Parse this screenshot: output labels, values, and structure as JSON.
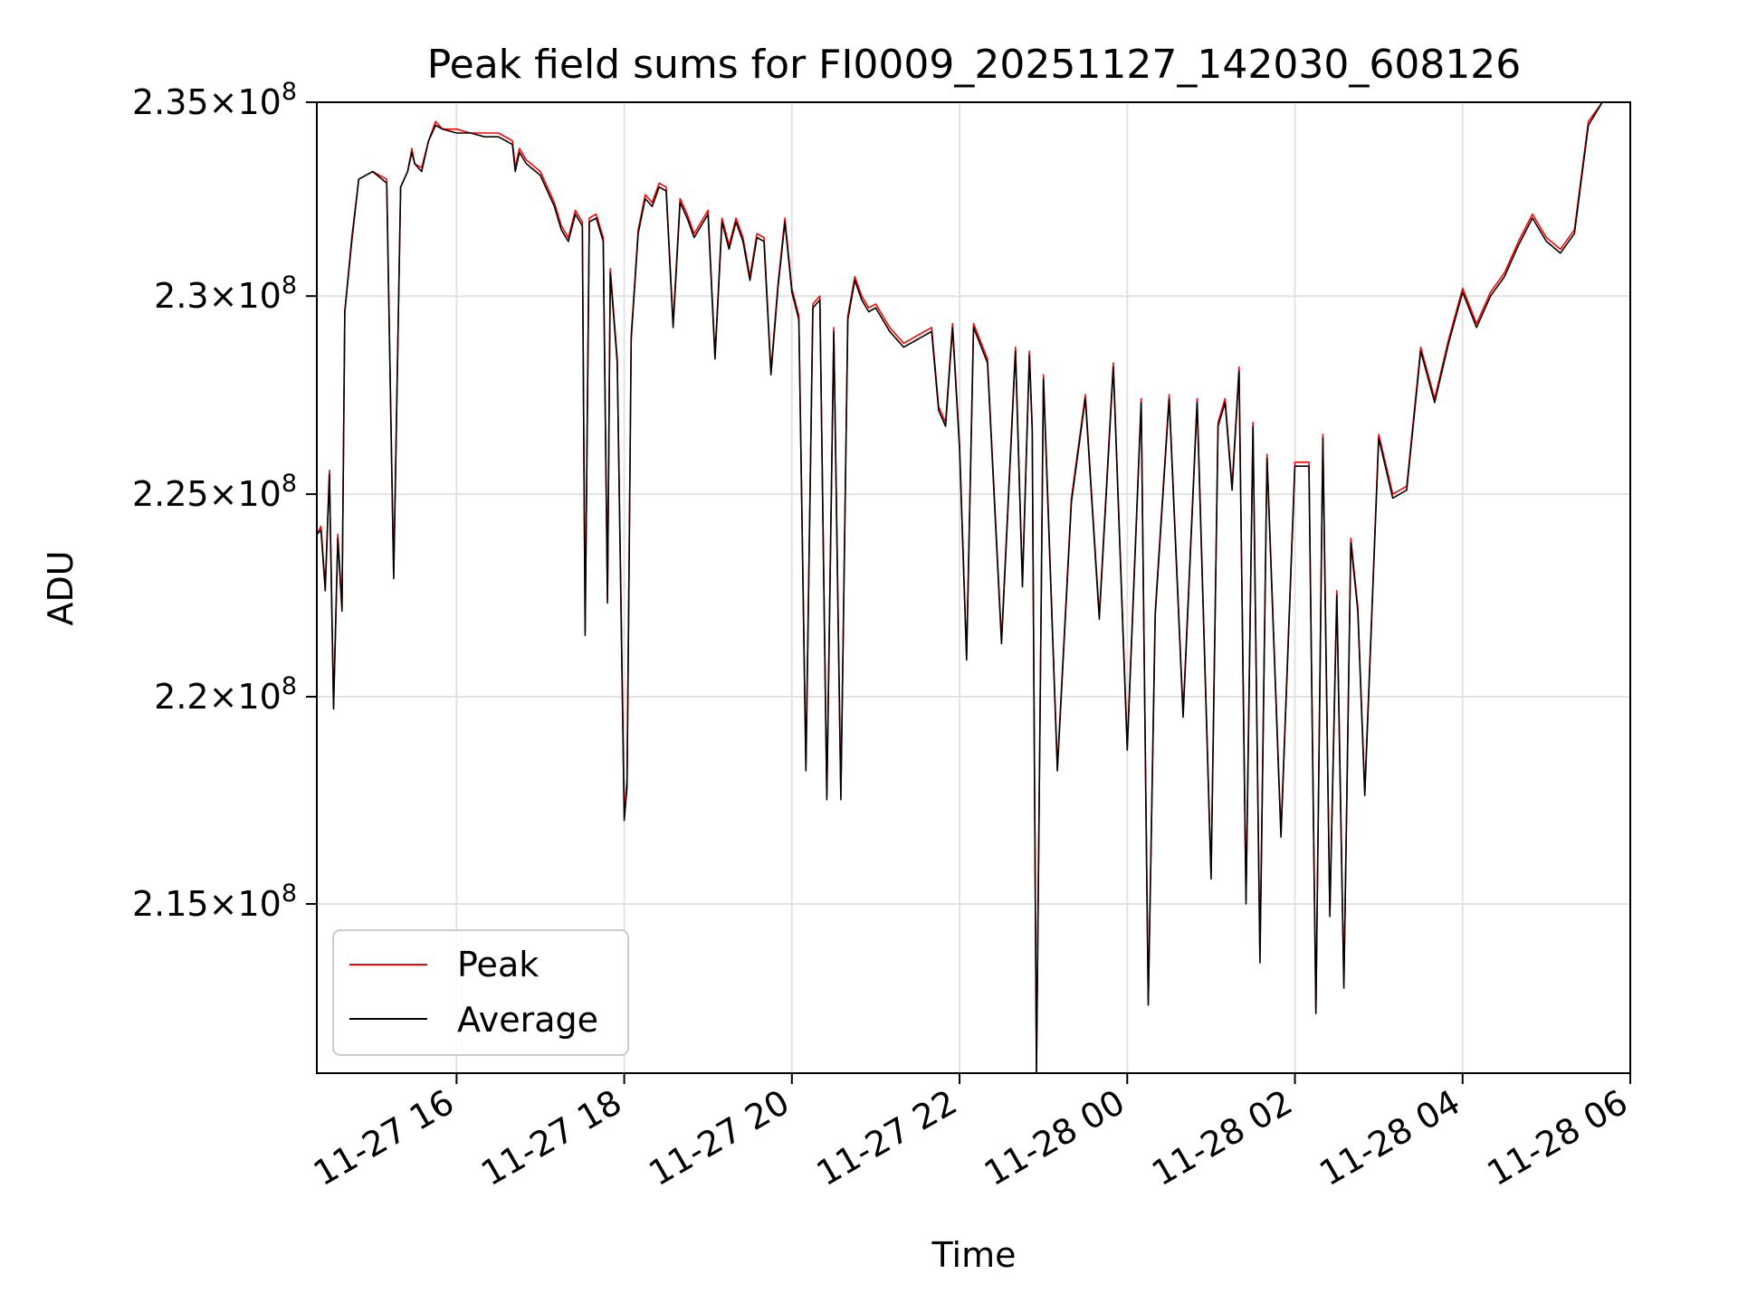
{
  "chart_data": {
    "type": "line",
    "title": "Peak field sums for FI0009_20251127_142030_608126",
    "xlabel": "Time",
    "ylabel": "ADU",
    "yscale": "log",
    "ylim": [
      211000000,
      235000000
    ],
    "xlim": [
      "2025-11-27 14:20",
      "2025-11-28 06:00"
    ],
    "grid": true,
    "legend_loc": "lower left",
    "x_ticks": [
      {
        "x": "2025-11-27 16:00",
        "label": "11-27 16"
      },
      {
        "x": "2025-11-27 18:00",
        "label": "11-27 18"
      },
      {
        "x": "2025-11-27 20:00",
        "label": "11-27 20"
      },
      {
        "x": "2025-11-27 22:00",
        "label": "11-27 22"
      },
      {
        "x": "2025-11-28 00:00",
        "label": "11-28 00"
      },
      {
        "x": "2025-11-28 02:00",
        "label": "11-28 02"
      },
      {
        "x": "2025-11-28 04:00",
        "label": "11-28 04"
      },
      {
        "x": "2025-11-28 06:00",
        "label": "11-28 06"
      }
    ],
    "y_ticks": [
      {
        "value": 215000000,
        "mantissa": "2.15",
        "exp": "8"
      },
      {
        "value": 220000000,
        "mantissa": "2.2",
        "exp": "8"
      },
      {
        "value": 225000000,
        "mantissa": "2.25",
        "exp": "8"
      },
      {
        "value": 230000000,
        "mantissa": "2.3",
        "exp": "8"
      },
      {
        "value": 235000000,
        "mantissa": "2.35",
        "exp": "8"
      }
    ],
    "times_sign": "×",
    "tick_base": "10",
    "x": [
      "2025-11-27 14:20",
      "2025-11-27 14:23",
      "2025-11-27 14:26",
      "2025-11-27 14:29",
      "2025-11-27 14:32",
      "2025-11-27 14:35",
      "2025-11-27 14:38",
      "2025-11-27 14:40",
      "2025-11-27 14:45",
      "2025-11-27 14:50",
      "2025-11-27 15:00",
      "2025-11-27 15:10",
      "2025-11-27 15:15",
      "2025-11-27 15:20",
      "2025-11-27 15:25",
      "2025-11-27 15:28",
      "2025-11-27 15:30",
      "2025-11-27 15:35",
      "2025-11-27 15:40",
      "2025-11-27 15:45",
      "2025-11-27 15:50",
      "2025-11-27 16:00",
      "2025-11-27 16:10",
      "2025-11-27 16:20",
      "2025-11-27 16:30",
      "2025-11-27 16:40",
      "2025-11-27 16:42",
      "2025-11-27 16:45",
      "2025-11-27 16:50",
      "2025-11-27 17:00",
      "2025-11-27 17:10",
      "2025-11-27 17:15",
      "2025-11-27 17:20",
      "2025-11-27 17:25",
      "2025-11-27 17:30",
      "2025-11-27 17:32",
      "2025-11-27 17:35",
      "2025-11-27 17:40",
      "2025-11-27 17:45",
      "2025-11-27 17:48",
      "2025-11-27 17:50",
      "2025-11-27 17:55",
      "2025-11-27 18:00",
      "2025-11-27 18:02",
      "2025-11-27 18:05",
      "2025-11-27 18:10",
      "2025-11-27 18:15",
      "2025-11-27 18:20",
      "2025-11-27 18:25",
      "2025-11-27 18:30",
      "2025-11-27 18:35",
      "2025-11-27 18:40",
      "2025-11-27 18:45",
      "2025-11-27 18:50",
      "2025-11-27 19:00",
      "2025-11-27 19:05",
      "2025-11-27 19:10",
      "2025-11-27 19:15",
      "2025-11-27 19:20",
      "2025-11-27 19:25",
      "2025-11-27 19:30",
      "2025-11-27 19:35",
      "2025-11-27 19:40",
      "2025-11-27 19:45",
      "2025-11-27 19:50",
      "2025-11-27 19:55",
      "2025-11-27 20:00",
      "2025-11-27 20:05",
      "2025-11-27 20:10",
      "2025-11-27 20:15",
      "2025-11-27 20:20",
      "2025-11-27 20:25",
      "2025-11-27 20:30",
      "2025-11-27 20:35",
      "2025-11-27 20:40",
      "2025-11-27 20:45",
      "2025-11-27 20:50",
      "2025-11-27 20:55",
      "2025-11-27 21:00",
      "2025-11-27 21:10",
      "2025-11-27 21:20",
      "2025-11-27 21:30",
      "2025-11-27 21:40",
      "2025-11-27 21:45",
      "2025-11-27 21:50",
      "2025-11-27 21:55",
      "2025-11-27 22:00",
      "2025-11-27 22:05",
      "2025-11-27 22:10",
      "2025-11-27 22:20",
      "2025-11-27 22:30",
      "2025-11-27 22:40",
      "2025-11-27 22:45",
      "2025-11-27 22:50",
      "2025-11-27 22:52",
      "2025-11-27 22:55",
      "2025-11-27 23:00",
      "2025-11-27 23:10",
      "2025-11-27 23:20",
      "2025-11-27 23:30",
      "2025-11-27 23:40",
      "2025-11-27 23:50",
      "2025-11-28 00:00",
      "2025-11-28 00:10",
      "2025-11-28 00:15",
      "2025-11-28 00:20",
      "2025-11-28 00:30",
      "2025-11-28 00:40",
      "2025-11-28 00:50",
      "2025-11-28 01:00",
      "2025-11-28 01:05",
      "2025-11-28 01:10",
      "2025-11-28 01:15",
      "2025-11-28 01:20",
      "2025-11-28 01:25",
      "2025-11-28 01:30",
      "2025-11-28 01:35",
      "2025-11-28 01:40",
      "2025-11-28 01:50",
      "2025-11-28 02:00",
      "2025-11-28 02:10",
      "2025-11-28 02:15",
      "2025-11-28 02:20",
      "2025-11-28 02:25",
      "2025-11-28 02:30",
      "2025-11-28 02:35",
      "2025-11-28 02:40",
      "2025-11-28 02:45",
      "2025-11-28 02:50",
      "2025-11-28 03:00",
      "2025-11-28 03:10",
      "2025-11-28 03:20",
      "2025-11-28 03:30",
      "2025-11-28 03:40",
      "2025-11-28 03:50",
      "2025-11-28 04:00",
      "2025-11-28 04:10",
      "2025-11-28 04:20",
      "2025-11-28 04:30",
      "2025-11-28 04:40",
      "2025-11-28 04:50",
      "2025-11-28 05:00",
      "2025-11-28 05:10",
      "2025-11-28 05:20",
      "2025-11-28 05:30",
      "2025-11-28 05:40",
      "2025-11-28 05:50",
      "2025-11-28 06:00"
    ],
    "series": [
      {
        "name": "Peak",
        "color": "#ff0000",
        "values": [
          224000000,
          224200000,
          222700000,
          225600000,
          219800000,
          224000000,
          222200000,
          229600000,
          231500000,
          233000000,
          233200000,
          233000000,
          223000000,
          232800000,
          233200000,
          233800000,
          233400000,
          233300000,
          234000000,
          234500000,
          234300000,
          234300000,
          234200000,
          234200000,
          234200000,
          234000000,
          233300000,
          233800000,
          233500000,
          233200000,
          232400000,
          231800000,
          231500000,
          232200000,
          231900000,
          221600000,
          232000000,
          232100000,
          231500000,
          222400000,
          230700000,
          228400000,
          217200000,
          218000000,
          229000000,
          231700000,
          232600000,
          232400000,
          232900000,
          232800000,
          229300000,
          232500000,
          232100000,
          231600000,
          232200000,
          228500000,
          232000000,
          231300000,
          232000000,
          231500000,
          230500000,
          231600000,
          231500000,
          228100000,
          230300000,
          232000000,
          230200000,
          229500000,
          218300000,
          229800000,
          230000000,
          217600000,
          229200000,
          217600000,
          229500000,
          230500000,
          230000000,
          229700000,
          229800000,
          229200000,
          228800000,
          229000000,
          229200000,
          227200000,
          226800000,
          229300000,
          226200000,
          221000000,
          229300000,
          228400000,
          221400000,
          228700000,
          222800000,
          228600000,
          226700000,
          211000000,
          228000000,
          218300000,
          224900000,
          227500000,
          222000000,
          228300000,
          218800000,
          227400000,
          212700000,
          222100000,
          227500000,
          219600000,
          227400000,
          215700000,
          226800000,
          227400000,
          225200000,
          228200000,
          215100000,
          226800000,
          213800000,
          226000000,
          216700000,
          225800000,
          225800000,
          212500000,
          226500000,
          214800000,
          222600000,
          213100000,
          223900000,
          222200000,
          217700000,
          226500000,
          225000000,
          225200000,
          228700000,
          227400000,
          228900000,
          230200000,
          229300000,
          230100000,
          230600000,
          231400000,
          232100000,
          231500000,
          231200000,
          231700000,
          234500000,
          235000000,
          235000000,
          235000000
        ]
      },
      {
        "name": "Average",
        "color": "#000000",
        "values": [
          224000000,
          224100000,
          222600000,
          225500000,
          219700000,
          223900000,
          222100000,
          229600000,
          231400000,
          233000000,
          233200000,
          232900000,
          222900000,
          232800000,
          233200000,
          233700000,
          233400000,
          233200000,
          234000000,
          234400000,
          234300000,
          234200000,
          234200000,
          234100000,
          234100000,
          233900000,
          233200000,
          233700000,
          233400000,
          233100000,
          232300000,
          231700000,
          231400000,
          232100000,
          231800000,
          221500000,
          231900000,
          232000000,
          231400000,
          222300000,
          230600000,
          228300000,
          217000000,
          217800000,
          228900000,
          231600000,
          232500000,
          232300000,
          232800000,
          232700000,
          229200000,
          232400000,
          232000000,
          231500000,
          232100000,
          228400000,
          231900000,
          231200000,
          231900000,
          231400000,
          230400000,
          231500000,
          231400000,
          228000000,
          230200000,
          231900000,
          230100000,
          229400000,
          218200000,
          229700000,
          229900000,
          217500000,
          229100000,
          217500000,
          229400000,
          230400000,
          229900000,
          229600000,
          229700000,
          229100000,
          228700000,
          228900000,
          229100000,
          227100000,
          226700000,
          229200000,
          226100000,
          220900000,
          229200000,
          228300000,
          221300000,
          228600000,
          222700000,
          228500000,
          226600000,
          211000000,
          227900000,
          218200000,
          224800000,
          227400000,
          221900000,
          228200000,
          218700000,
          227300000,
          212600000,
          222000000,
          227400000,
          219500000,
          227300000,
          215600000,
          226700000,
          227300000,
          225100000,
          228100000,
          215000000,
          226700000,
          213600000,
          225900000,
          216600000,
          225700000,
          225700000,
          212400000,
          226400000,
          214700000,
          222500000,
          213000000,
          223800000,
          222100000,
          217600000,
          226400000,
          224900000,
          225100000,
          228600000,
          227300000,
          228800000,
          230100000,
          229200000,
          230000000,
          230500000,
          231300000,
          232000000,
          231400000,
          231100000,
          231600000,
          234400000,
          235000000,
          235000000,
          235000000
        ]
      }
    ]
  }
}
